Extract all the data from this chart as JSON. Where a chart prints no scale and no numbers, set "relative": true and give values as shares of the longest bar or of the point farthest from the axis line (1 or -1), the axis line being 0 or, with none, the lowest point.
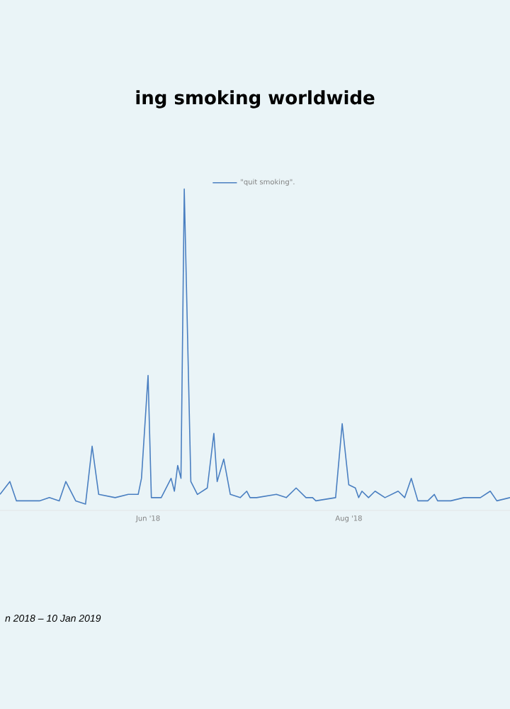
{
  "chart_data": {
    "type": "line",
    "title": "ing smoking worldwide",
    "relative": true,
    "legend": "top",
    "grid": false,
    "marker": "none",
    "line_style": "solid",
    "x": [
      "2018-04-17",
      "2018-04-20",
      "2018-04-22",
      "2018-04-25",
      "2018-04-29",
      "2018-05-02",
      "2018-05-05",
      "2018-05-07",
      "2018-05-10",
      "2018-05-13",
      "2018-05-15",
      "2018-05-17",
      "2018-05-22",
      "2018-05-26",
      "2018-05-29",
      "2018-05-30",
      "2018-06-01",
      "2018-06-02",
      "2018-06-05",
      "2018-06-08",
      "2018-06-09",
      "2018-06-10",
      "2018-06-11",
      "2018-06-12",
      "2018-06-14",
      "2018-06-16",
      "2018-06-19",
      "2018-06-21",
      "2018-06-22",
      "2018-06-24",
      "2018-06-26",
      "2018-06-29",
      "2018-07-01",
      "2018-07-02",
      "2018-07-04",
      "2018-07-10",
      "2018-07-13",
      "2018-07-16",
      "2018-07-19",
      "2018-07-21",
      "2018-07-22",
      "2018-07-28",
      "2018-07-30",
      "2018-08-01",
      "2018-08-03",
      "2018-08-04",
      "2018-08-05",
      "2018-08-07",
      "2018-08-09",
      "2018-08-12",
      "2018-08-16",
      "2018-08-18",
      "2018-08-20",
      "2018-08-22",
      "2018-08-25",
      "2018-08-27",
      "2018-08-28",
      "2018-09-01",
      "2018-09-05",
      "2018-09-10",
      "2018-09-13",
      "2018-09-15",
      "2018-09-19"
    ],
    "series": [
      {
        "name": "\"quit smoking\".",
        "color": "#4a7fc1",
        "values": [
          0.05,
          0.09,
          0.03,
          0.03,
          0.03,
          0.04,
          0.03,
          0.09,
          0.03,
          0.02,
          0.2,
          0.05,
          0.04,
          0.05,
          0.05,
          0.1,
          0.42,
          0.04,
          0.04,
          0.1,
          0.06,
          0.14,
          0.1,
          1,
          0.09,
          0.05,
          0.07,
          0.24,
          0.09,
          0.16,
          0.05,
          0.04,
          0.06,
          0.04,
          0.04,
          0.05,
          0.04,
          0.07,
          0.04,
          0.04,
          0.03,
          0.04,
          0.27,
          0.08,
          0.07,
          0.04,
          0.06,
          0.04,
          0.06,
          0.04,
          0.06,
          0.04,
          0.1,
          0.03,
          0.03,
          0.05,
          0.03,
          0.03,
          0.04,
          0.04,
          0.06,
          0.03,
          0.04
        ]
      }
    ],
    "xlim": [
      "2018-04-17",
      "2018-09-19"
    ],
    "xticks": [
      {
        "value": "2018-06-01",
        "label": "Jun '18"
      },
      {
        "value": "2018-08-01",
        "label": "Aug '18"
      }
    ],
    "annotations": [
      "n 2018 – 10 Jan 2019"
    ]
  }
}
